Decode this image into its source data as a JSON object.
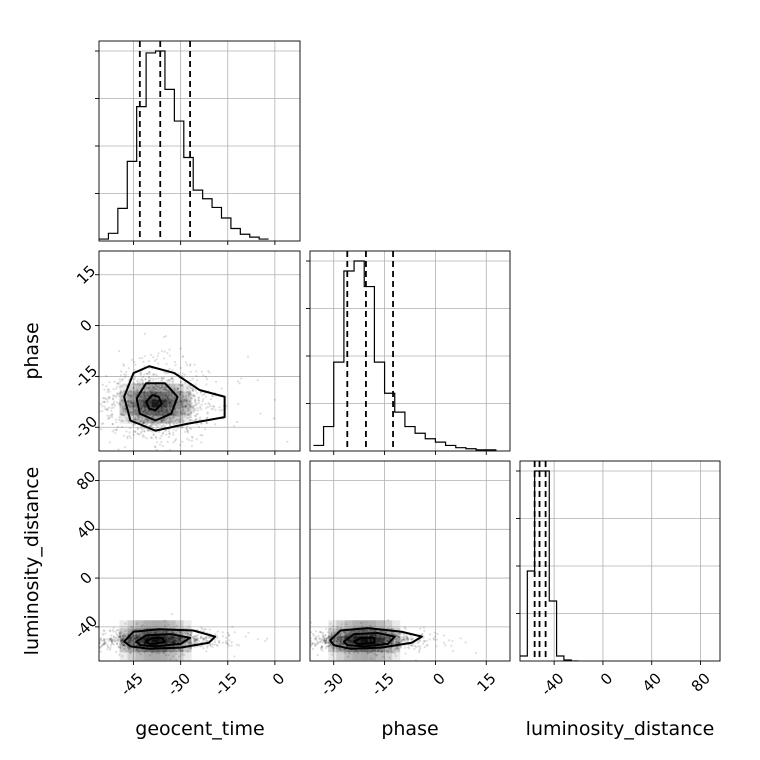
{
  "chart_data": {
    "type": "corner",
    "parameters": [
      "geocent_time",
      "phase",
      "luminosity_distance"
    ],
    "axis_labels": {
      "geocent_time": "geocent_time",
      "phase": "phase",
      "luminosity_distance": "luminosity_distance"
    },
    "ranges": {
      "geocent_time": [
        -56,
        8
      ],
      "phase": [
        -37,
        22
      ],
      "luminosity_distance": [
        -68,
        96
      ]
    },
    "ticks": {
      "geocent_time": [
        -45,
        -30,
        -15,
        0
      ],
      "phase": [
        -30,
        -15,
        0,
        15
      ],
      "luminosity_distance": [
        -40,
        0,
        40,
        80
      ]
    },
    "grid": true,
    "quantile_lines": {
      "geocent_time": [
        -43,
        -36.5,
        -27
      ],
      "phase": [
        -26,
        -20.5,
        -12.5
      ],
      "luminosity_distance": [
        -56,
        -52,
        -47
      ]
    },
    "histograms": {
      "geocent_time": {
        "edges": [
          -56,
          -53,
          -50,
          -47,
          -44,
          -41,
          -38,
          -35,
          -32,
          -29,
          -26,
          -23,
          -20,
          -17,
          -14,
          -11,
          -8,
          -5,
          -2
        ],
        "counts": [
          2,
          8,
          34,
          83,
          140,
          196,
          198,
          158,
          125,
          87,
          53,
          44,
          35,
          24,
          13,
          7,
          4,
          2
        ]
      },
      "phase": {
        "edges": [
          -36,
          -33,
          -30,
          -27,
          -24,
          -21,
          -18,
          -15,
          -12,
          -9,
          -6,
          -3,
          0,
          3,
          6,
          9,
          12,
          15,
          18
        ],
        "counts": [
          5,
          22,
          80,
          162,
          171,
          148,
          80,
          52,
          35,
          22,
          16,
          11,
          8,
          5,
          3,
          2,
          1,
          1
        ]
      },
      "luminosity_distance": {
        "edges": [
          -68,
          -62,
          -56,
          -50,
          -44,
          -38,
          -32,
          -26,
          -20
        ],
        "counts": [
          5,
          90,
          190,
          190,
          60,
          5,
          1,
          0
        ]
      }
    },
    "density_2d": {
      "phase_vs_geocent_time": {
        "centers": [
          -38,
          -23
        ],
        "spread": [
          8,
          5
        ],
        "contours": [
          [
            [
              -41,
              -22.5
            ],
            [
              -39,
              -20.5
            ],
            [
              -37,
              -21
            ],
            [
              -36,
              -23
            ],
            [
              -38,
              -25
            ],
            [
              -40,
              -24.5
            ]
          ],
          [
            [
              -44,
              -21.5
            ],
            [
              -41,
              -17
            ],
            [
              -35,
              -17
            ],
            [
              -31,
              -21
            ],
            [
              -33,
              -26
            ],
            [
              -38,
              -28
            ],
            [
              -43,
              -26
            ]
          ],
          [
            [
              -48,
              -21
            ],
            [
              -45,
              -14
            ],
            [
              -40,
              -12
            ],
            [
              -32,
              -14
            ],
            [
              -24,
              -19
            ],
            [
              -16,
              -21
            ],
            [
              -16,
              -27
            ],
            [
              -28,
              -29
            ],
            [
              -38,
              -31
            ],
            [
              -46,
              -28
            ]
          ]
        ]
      },
      "luminosity_distance_vs_geocent_time": {
        "centers": [
          -38,
          -51
        ],
        "spread": [
          8,
          4
        ],
        "contours": [
          [
            [
              -41,
              -52
            ],
            [
              -39,
              -49
            ],
            [
              -36,
              -49
            ],
            [
              -35,
              -52
            ],
            [
              -38,
              -54
            ],
            [
              -40,
              -54
            ]
          ],
          [
            [
              -44,
              -52
            ],
            [
              -41,
              -47
            ],
            [
              -33,
              -46
            ],
            [
              -27,
              -49
            ],
            [
              -30,
              -54
            ],
            [
              -38,
              -56
            ],
            [
              -43,
              -55
            ]
          ],
          [
            [
              -48,
              -52
            ],
            [
              -45,
              -44
            ],
            [
              -37,
              -42
            ],
            [
              -26,
              -43
            ],
            [
              -19,
              -48
            ],
            [
              -21,
              -53
            ],
            [
              -30,
              -57
            ],
            [
              -40,
              -58
            ],
            [
              -46,
              -56
            ]
          ]
        ]
      },
      "luminosity_distance_vs_phase": {
        "centers": [
          -21,
          -51
        ],
        "spread": [
          7,
          4
        ],
        "contours": [
          [
            [
              -24,
              -52
            ],
            [
              -22,
              -49
            ],
            [
              -18,
              -49
            ],
            [
              -18,
              -53
            ],
            [
              -21,
              -54
            ],
            [
              -23,
              -54
            ]
          ],
          [
            [
              -27,
              -52
            ],
            [
              -24,
              -46
            ],
            [
              -17,
              -45
            ],
            [
              -12,
              -48
            ],
            [
              -14,
              -54
            ],
            [
              -21,
              -56
            ],
            [
              -26,
              -55
            ]
          ],
          [
            [
              -31,
              -51
            ],
            [
              -28,
              -43
            ],
            [
              -20,
              -41
            ],
            [
              -10,
              -44
            ],
            [
              -4,
              -48
            ],
            [
              -7,
              -53
            ],
            [
              -16,
              -57
            ],
            [
              -25,
              -58
            ],
            [
              -30,
              -55
            ]
          ]
        ]
      }
    }
  }
}
